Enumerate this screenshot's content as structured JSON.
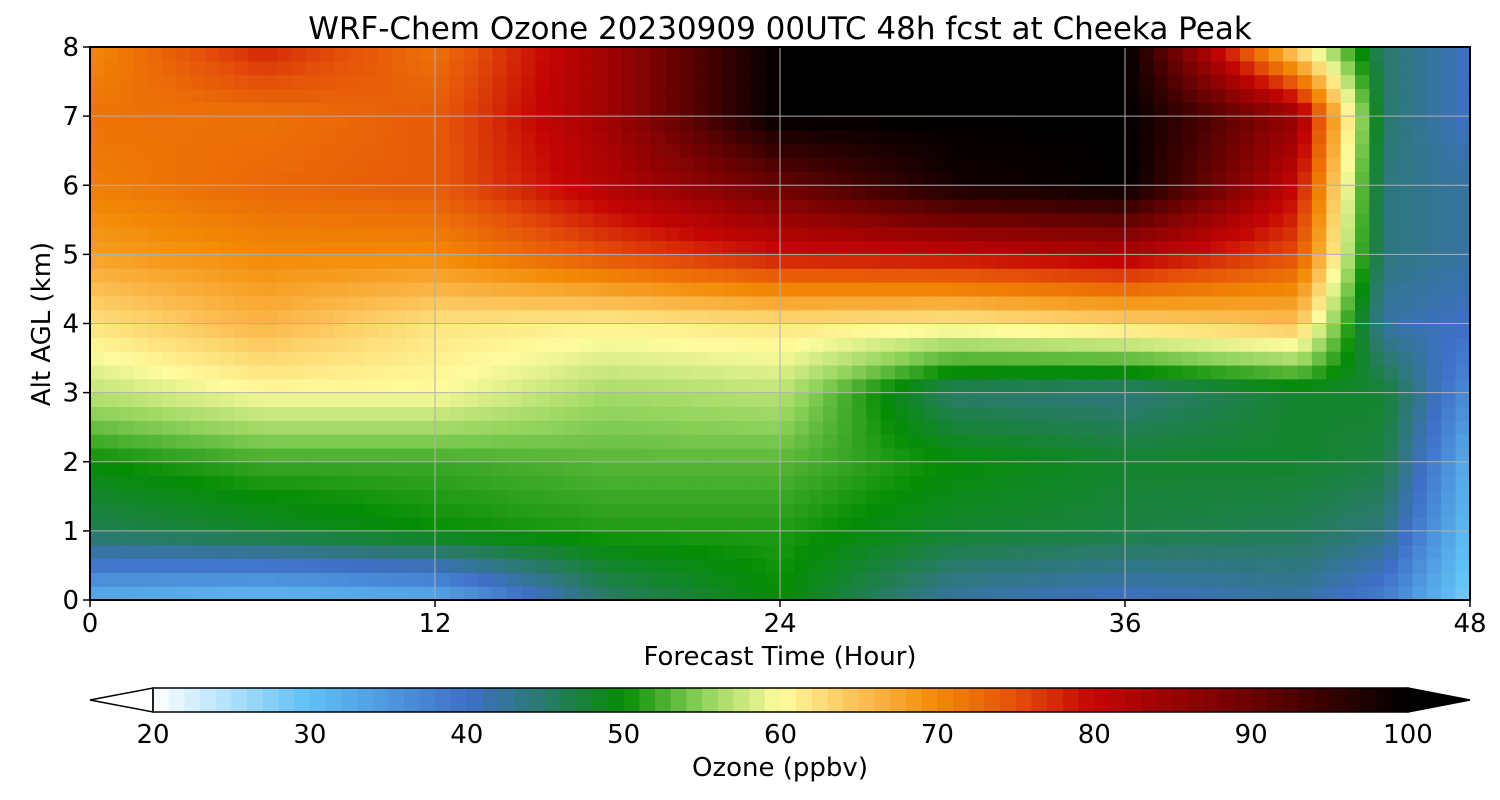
{
  "chart_data": {
    "type": "heatmap",
    "title": "WRF-Chem Ozone  20230909 00UTC 48h fcst at Cheeka Peak",
    "xlabel": "Forecast Time (Hour)",
    "ylabel": "Alt AGL (km)",
    "xlim": [
      0,
      48
    ],
    "ylim": [
      0,
      8
    ],
    "x_ticks": [
      0,
      12,
      24,
      36,
      48
    ],
    "y_ticks": [
      0,
      1,
      2,
      3,
      4,
      5,
      6,
      7,
      8
    ],
    "grid": true,
    "x": [
      0,
      6,
      12,
      18,
      24,
      30,
      36,
      42,
      45,
      48
    ],
    "y": [
      0,
      1,
      2,
      3,
      4,
      5,
      6,
      7,
      8
    ],
    "z": [
      [
        32,
        30,
        32,
        45,
        50,
        42,
        40,
        42,
        38,
        28
      ],
      [
        46,
        48,
        50,
        51,
        51,
        48,
        47,
        46,
        44,
        30
      ],
      [
        50,
        52,
        52,
        53,
        53,
        50,
        48,
        48,
        47,
        32
      ],
      [
        57,
        60,
        60,
        56,
        57,
        45,
        44,
        48,
        48,
        36
      ],
      [
        62,
        66,
        62,
        61,
        62,
        61,
        63,
        65,
        42,
        40
      ],
      [
        68,
        70,
        70,
        75,
        79,
        80,
        82,
        75,
        44,
        42
      ],
      [
        71,
        73,
        74,
        82,
        90,
        98,
        100,
        80,
        44,
        42
      ],
      [
        72,
        72,
        74,
        84,
        100,
        100,
        100,
        85,
        45,
        40
      ],
      [
        70,
        78,
        72,
        84,
        100,
        100,
        100,
        62,
        45,
        40
      ]
    ],
    "colorbar": {
      "label": "Ozone  (ppbv)",
      "min": 20,
      "max": 100,
      "ticks": [
        20,
        30,
        40,
        50,
        60,
        70,
        80,
        90,
        100
      ],
      "extend": "both",
      "color_stops": [
        {
          "value": 20,
          "color": "#ffffff"
        },
        {
          "value": 30,
          "color": "#5ec0f5"
        },
        {
          "value": 40,
          "color": "#3f6fc7"
        },
        {
          "value": 45,
          "color": "#2a7a6a"
        },
        {
          "value": 50,
          "color": "#058c05"
        },
        {
          "value": 55,
          "color": "#8ed25a"
        },
        {
          "value": 60,
          "color": "#fffc9e"
        },
        {
          "value": 65,
          "color": "#fcc055"
        },
        {
          "value": 70,
          "color": "#f28a05"
        },
        {
          "value": 75,
          "color": "#e4500a"
        },
        {
          "value": 80,
          "color": "#c40404"
        },
        {
          "value": 90,
          "color": "#6a0202"
        },
        {
          "value": 100,
          "color": "#000000"
        }
      ]
    }
  }
}
